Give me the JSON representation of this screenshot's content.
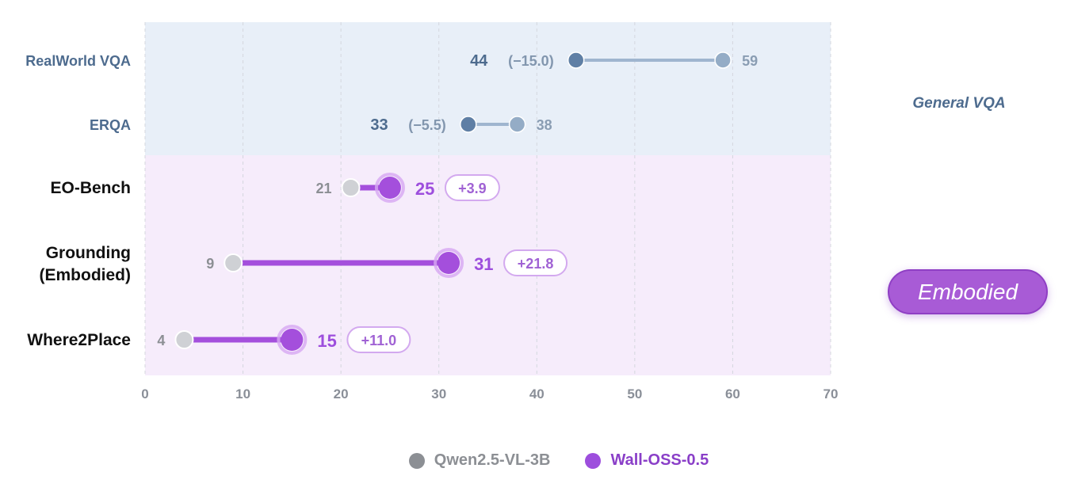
{
  "chart_data": {
    "type": "dumbbell",
    "xlim": [
      0,
      70
    ],
    "xticks": [
      0,
      10,
      20,
      30,
      40,
      50,
      60,
      70
    ],
    "grid": "vertical dashed",
    "legend_position": "bottom-center",
    "groups": [
      {
        "name": "General VQA",
        "rows": [
          0,
          1
        ],
        "color": "#e8eff8"
      },
      {
        "name": "Embodied",
        "rows": [
          2,
          3,
          4
        ],
        "color": "#f6ecfb"
      }
    ],
    "categories": [
      {
        "label": "RealWorld VQA",
        "lines": [
          "RealWorld VQA"
        ],
        "group": "General VQA"
      },
      {
        "label": "ERQA",
        "lines": [
          "ERQA"
        ],
        "group": "General VQA"
      },
      {
        "label": "EO-Bench",
        "lines": [
          "EO-Bench"
        ],
        "group": "Embodied"
      },
      {
        "label": "Grounding (Embodied)",
        "lines": [
          "Grounding",
          "(Embodied)"
        ],
        "group": "Embodied"
      },
      {
        "label": "Where2Place",
        "lines": [
          "Where2Place"
        ],
        "group": "Embodied"
      }
    ],
    "series": [
      {
        "name": "Qwen2.5-VL-3B",
        "color": "#8c8f94",
        "values": [
          59,
          38,
          21,
          9,
          4
        ]
      },
      {
        "name": "Wall-OSS-0.5",
        "color": "#9d4edd",
        "values": [
          44,
          33,
          25,
          31,
          15
        ]
      }
    ],
    "deltas": [
      "(−15.0)",
      "(−5.5)",
      "+3.9",
      "+21.8",
      "+11.0"
    ],
    "colors": {
      "general_text": "#4d6b8e",
      "general_dot_new": "#5f7fa5",
      "general_dot_old": "#94acc6",
      "general_line": "#9fb5cf",
      "embodied_text": "#9d4edd",
      "embodied_line": "#a44fdc",
      "embodied_dot": "#a44fdc",
      "embodied_dot_stroke": "#d7a8f2",
      "old_dot": "#cfd1d5",
      "old_text": "#8c8f94",
      "badge_border": "#d3a9ef"
    }
  },
  "group_labels": {
    "general": "General VQA",
    "embodied": "Embodied"
  },
  "legend": {
    "items": [
      {
        "label": "Qwen2.5-VL-3B",
        "color": "#8c8f94"
      },
      {
        "label": "Wall-OSS-0.5",
        "color": "#9d4edd"
      }
    ]
  }
}
